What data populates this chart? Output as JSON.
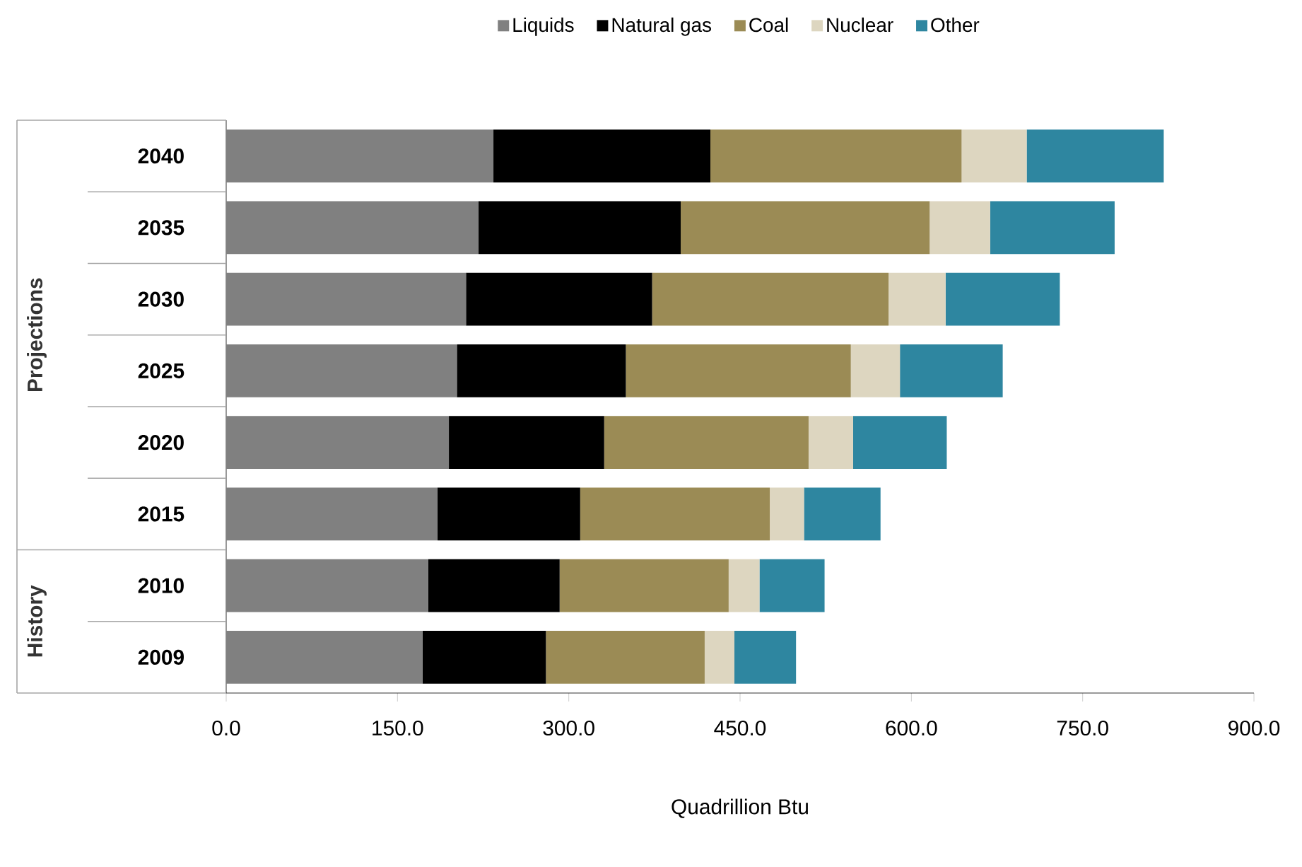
{
  "chart_data": {
    "type": "bar",
    "orientation": "horizontal",
    "stacked": true,
    "xlabel": "Quadrillion Btu",
    "categories": [
      "2040",
      "2035",
      "2030",
      "2025",
      "2020",
      "2015",
      "2010",
      "2009"
    ],
    "series": [
      {
        "name": "Liquids",
        "color": "#808080",
        "values": [
          234,
          221,
          210,
          202,
          195,
          185,
          177,
          172
        ]
      },
      {
        "name": "Natural gas",
        "color": "#000000",
        "values": [
          190,
          177,
          163,
          148,
          136,
          125,
          115,
          108
        ]
      },
      {
        "name": "Coal",
        "color": "#9b8b55",
        "values": [
          220,
          218,
          207,
          197,
          179,
          166,
          148,
          139
        ]
      },
      {
        "name": "Nuclear",
        "color": "#ddd6c0",
        "values": [
          57,
          53,
          50,
          43,
          39,
          30,
          27,
          26
        ]
      },
      {
        "name": "Other",
        "color": "#2e86a0",
        "values": [
          120,
          109,
          100,
          90,
          82,
          67,
          57,
          54
        ]
      }
    ],
    "xlim": [
      0,
      900
    ],
    "xticks": [
      {
        "value": 0,
        "label": "0.0"
      },
      {
        "value": 150,
        "label": "150.0"
      },
      {
        "value": 300,
        "label": "300.0"
      },
      {
        "value": 450,
        "label": "450.0"
      },
      {
        "value": 600,
        "label": "600.0"
      },
      {
        "value": 750,
        "label": "750.0"
      },
      {
        "value": 900,
        "label": "900.0"
      }
    ],
    "annotations": [
      "Projections",
      "History"
    ],
    "legend": "top",
    "grid": false
  }
}
